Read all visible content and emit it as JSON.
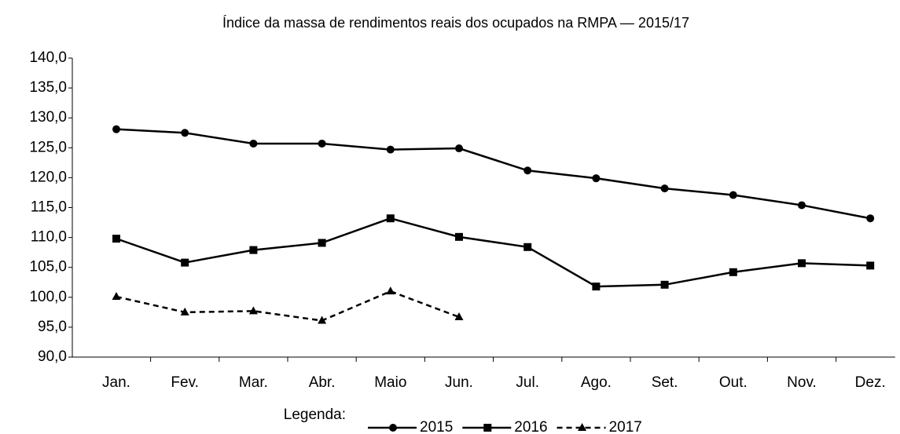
{
  "chart_data": {
    "type": "line",
    "title": "Índice da massa de rendimentos reais dos ocupados na RMPA — 2015/17",
    "categories": [
      "Jan.",
      "Fev.",
      "Mar.",
      "Abr.",
      "Maio",
      "Jun.",
      "Jul.",
      "Ago.",
      "Set.",
      "Out.",
      "Nov.",
      "Dez."
    ],
    "series": [
      {
        "name": "2015",
        "color": "#000000",
        "marker": "circle",
        "dash": "solid",
        "values": [
          128.1,
          127.5,
          125.7,
          125.7,
          124.7,
          124.9,
          121.2,
          119.9,
          118.2,
          117.1,
          115.4,
          113.2
        ]
      },
      {
        "name": "2016",
        "color": "#000000",
        "marker": "square",
        "dash": "solid",
        "values": [
          109.8,
          105.8,
          107.9,
          109.1,
          113.2,
          110.1,
          108.4,
          101.8,
          102.1,
          104.2,
          105.7,
          105.3
        ]
      },
      {
        "name": "2017",
        "color": "#000000",
        "marker": "triangle",
        "dash": "dashed",
        "values": [
          100.1,
          97.5,
          97.7,
          96.1,
          101.0,
          96.7,
          null,
          null,
          null,
          null,
          null,
          null
        ]
      }
    ],
    "ylim": [
      90,
      140
    ],
    "yticks": [
      {
        "value": 90,
        "label": "90,0"
      },
      {
        "value": 95,
        "label": "95,0"
      },
      {
        "value": 100,
        "label": "100,0"
      },
      {
        "value": 105,
        "label": "105,0"
      },
      {
        "value": 110,
        "label": "110,0"
      },
      {
        "value": 115,
        "label": "115,0"
      },
      {
        "value": 120,
        "label": "120,0"
      },
      {
        "value": 125,
        "label": "125,0"
      },
      {
        "value": 130,
        "label": "130,0"
      },
      {
        "value": 135,
        "label": "135,0"
      },
      {
        "value": 140,
        "label": "140,0"
      }
    ],
    "grid": false,
    "legend_title": "Legenda:",
    "legend_position": "bottom"
  }
}
